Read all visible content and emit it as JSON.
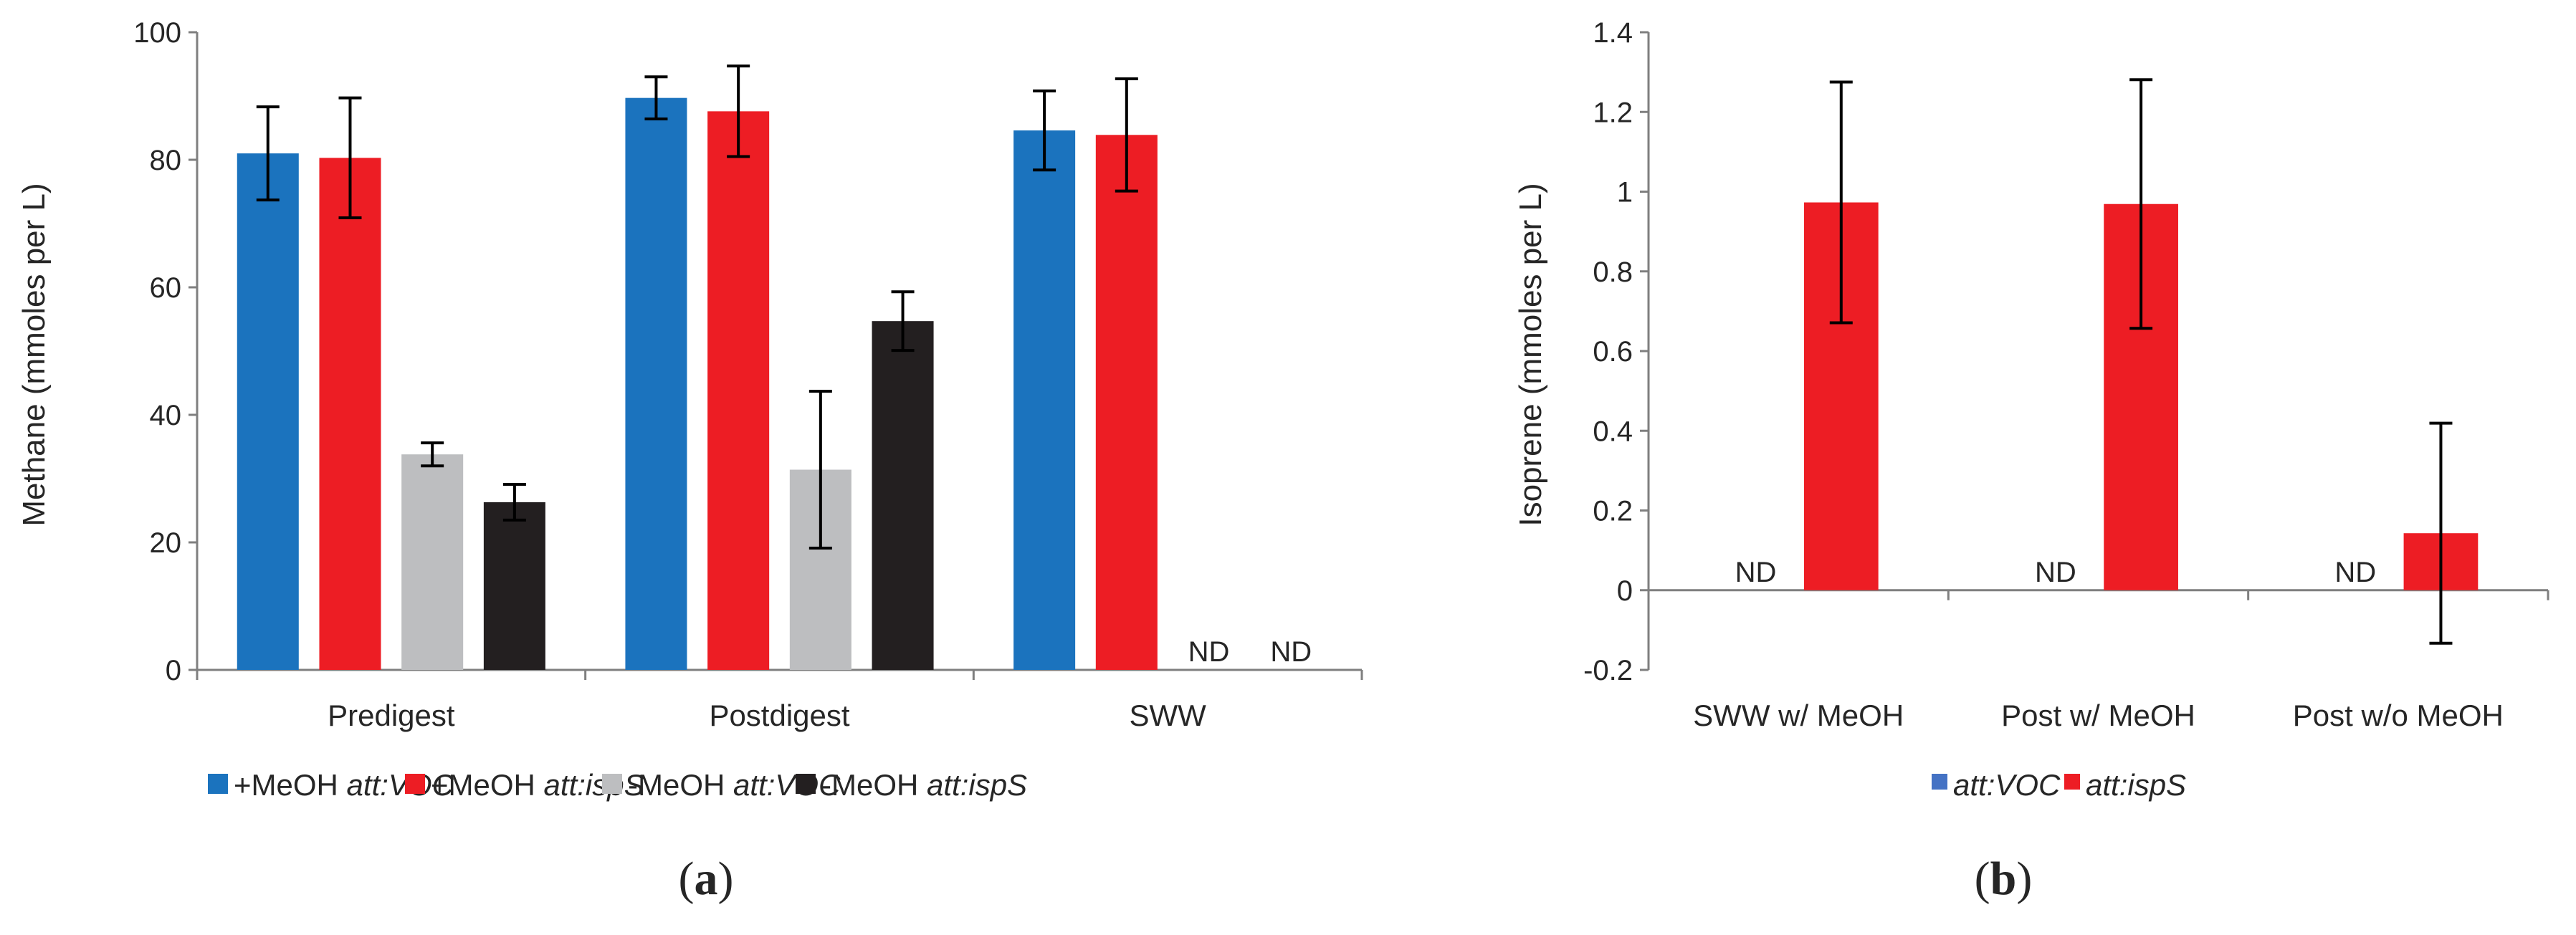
{
  "chart_data": [
    {
      "panel": "a",
      "type": "bar",
      "panel_label_open": "(",
      "panel_label_letter": "a",
      "panel_label_close": ")",
      "ylabel": "Methane (mmoles per L)",
      "xlabel": "",
      "ylim": [
        0,
        100
      ],
      "yticks": [
        0,
        20,
        40,
        60,
        80,
        100
      ],
      "ytick_labels": [
        "0",
        "20",
        "40",
        "60",
        "80",
        "100"
      ],
      "categories": [
        "Predigest",
        "Postdigest",
        "SWW"
      ],
      "series": [
        {
          "name_prefix": "+MeOH ",
          "name_italic": "att:VOC",
          "color": "#1B73BE",
          "values": [
            81,
            89.7,
            84.6
          ],
          "errors": [
            7.3,
            3.3,
            6.2
          ]
        },
        {
          "name_prefix": "+MeOH ",
          "name_italic": "att:ispS",
          "color": "#ED1D24",
          "values": [
            80.3,
            87.6,
            83.9
          ],
          "errors": [
            9.4,
            7.1,
            8.8
          ]
        },
        {
          "name_prefix": "-MeOH ",
          "name_italic": "att:VOC",
          "color": "#BDBEC0",
          "values": [
            33.8,
            31.4,
            null
          ],
          "errors": [
            1.8,
            12.3,
            null
          ]
        },
        {
          "name_prefix": "-MeOH ",
          "name_italic": "att:ispS",
          "color": "#231F20",
          "values": [
            26.3,
            54.7,
            null
          ],
          "errors": [
            2.8,
            4.6,
            null
          ]
        }
      ],
      "not_detected_label": "ND",
      "legend_position": "bottom"
    },
    {
      "panel": "b",
      "type": "bar",
      "panel_label_open": "(",
      "panel_label_letter": "b",
      "panel_label_close": ")",
      "ylabel": "Isoprene (mmoles per L)",
      "xlabel": "",
      "ylim": [
        -0.2,
        1.4
      ],
      "yticks": [
        -0.2,
        0,
        0.2,
        0.4,
        0.6,
        0.8,
        1,
        1.2,
        1.4
      ],
      "ytick_labels": [
        "-0.2",
        "0",
        "0.2",
        "0.4",
        "0.6",
        "0.8",
        "1",
        "1.2",
        "1.4"
      ],
      "categories": [
        "SWW w/ MeOH",
        "Post w/ MeOH",
        "Post w/o MeOH"
      ],
      "series": [
        {
          "name_prefix": "",
          "name_italic": "att:VOC",
          "color": "#4472C4",
          "values": [
            null,
            null,
            null
          ],
          "errors": [
            null,
            null,
            null
          ]
        },
        {
          "name_prefix": "",
          "name_italic": "att:ispS",
          "color": "#ED1D24",
          "values": [
            0.973,
            0.969,
            0.143
          ],
          "errors": [
            0.302,
            0.312,
            0.276
          ]
        }
      ],
      "not_detected_label": "ND",
      "legend_position": "bottom"
    }
  ]
}
